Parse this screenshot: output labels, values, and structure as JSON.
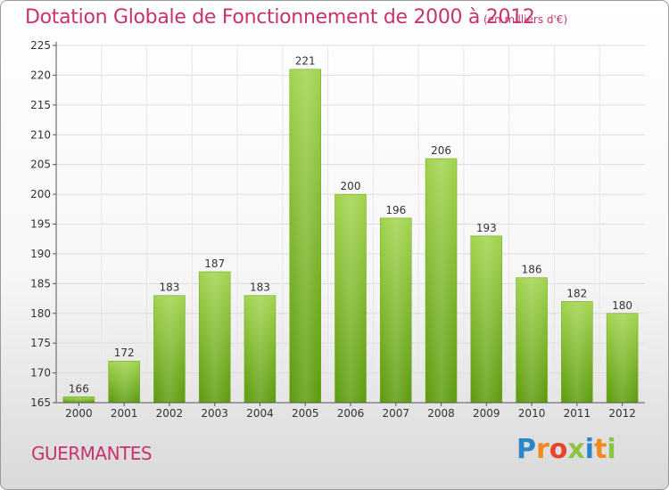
{
  "chart_data": {
    "type": "bar",
    "title": "Dotation Globale de Fonctionnement de 2000 à 2012",
    "subtitle": "(en milliers d'€)",
    "xlabel": "",
    "ylabel": "",
    "categories": [
      "2000",
      "2001",
      "2002",
      "2003",
      "2004",
      "2005",
      "2006",
      "2007",
      "2008",
      "2009",
      "2010",
      "2011",
      "2012"
    ],
    "values": [
      166,
      172,
      183,
      187,
      183,
      221,
      200,
      196,
      206,
      193,
      186,
      182,
      180
    ],
    "ylim": [
      165,
      225
    ],
    "yticks": [
      165,
      170,
      175,
      180,
      185,
      190,
      195,
      200,
      205,
      210,
      215,
      220,
      225
    ],
    "grid": true,
    "legend": "none",
    "colors": {
      "bar_top": "#9fd14c",
      "bar_bottom": "#5f9e12",
      "grid": "#dddddd"
    }
  },
  "footer": {
    "place": "GUERMANTES",
    "logo_letters": [
      "P",
      "r",
      "o",
      "x",
      "i",
      "t",
      "i"
    ]
  }
}
